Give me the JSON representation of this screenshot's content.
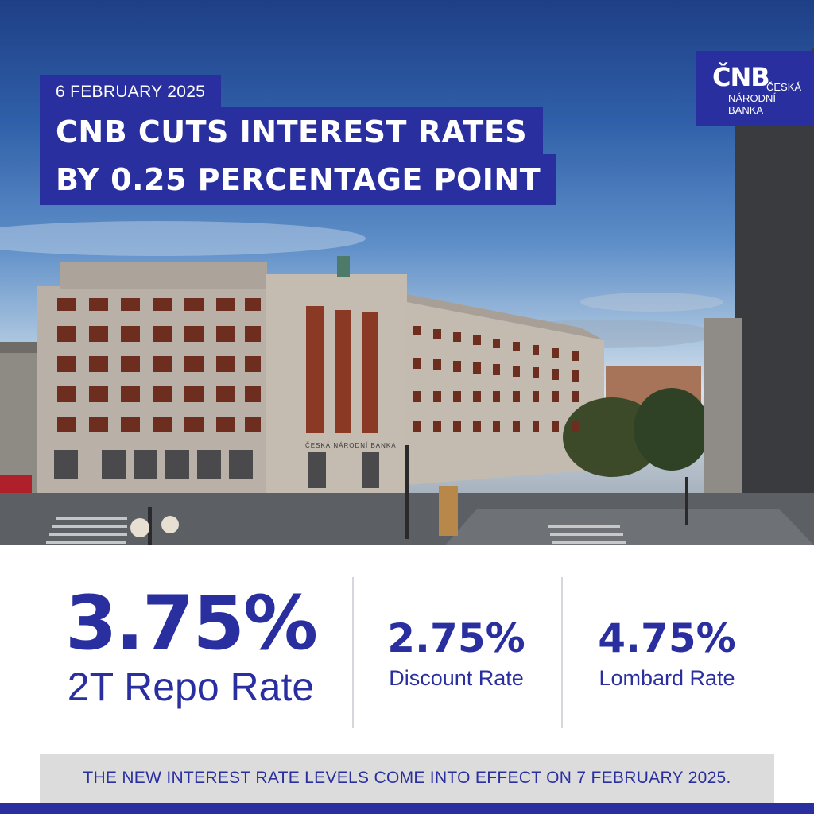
{
  "header": {
    "date": "6 FEBRUARY 2025",
    "headline_line1": "CNB CUTS INTEREST RATES",
    "headline_line2": "BY 0.25 PERCENTAGE POINT"
  },
  "logo": {
    "mark": "ČNB",
    "line1": "ČESKÁ",
    "line2": "NÁRODNÍ",
    "line3": "BANKA"
  },
  "photo": {
    "building_sign": "ČESKÁ NÁRODNÍ BANKA"
  },
  "rates": {
    "main": {
      "value": "3.75%",
      "label": "2T Repo Rate"
    },
    "discount": {
      "value": "2.75%",
      "label": "Discount Rate"
    },
    "lombard": {
      "value": "4.75%",
      "label": "Lombard Rate"
    }
  },
  "notice": "THE NEW INTEREST RATE LEVELS COME INTO EFFECT ON 7 FEBRUARY 2025.",
  "colors": {
    "brand_blue": "#2a2fa0",
    "notice_bg": "#dcdcdc"
  }
}
